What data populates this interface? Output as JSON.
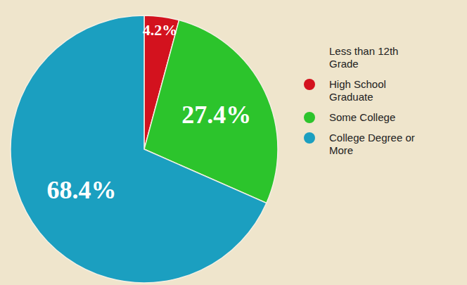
{
  "chart_data": {
    "type": "pie",
    "categories": [
      "Less than 12th Grade",
      "High School Graduate",
      "Some College",
      "College Degree or More"
    ],
    "values": [
      0,
      4.2,
      27.4,
      68.4
    ],
    "value_labels": [
      null,
      "4.2%",
      "27.4%",
      "68.4%"
    ],
    "colors": [
      null,
      "#d3121e",
      "#2cc42c",
      "#1b9fc0"
    ],
    "data_labels": true,
    "legend": "right"
  }
}
